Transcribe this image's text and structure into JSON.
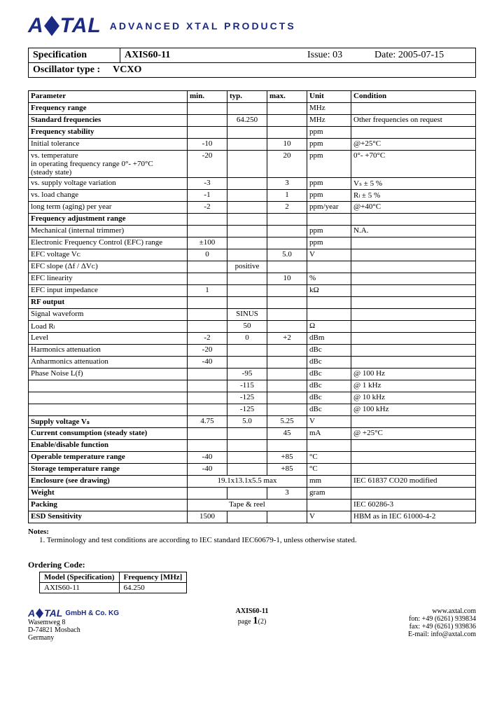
{
  "brand": {
    "name_a": "A",
    "name_b": "TAL",
    "tagline": "ADVANCED  XTAL  PRODUCTS"
  },
  "hdr": {
    "spec": "Specification",
    "model": "AXIS60-11",
    "issue_l": "Issue:",
    "issue_v": "03",
    "date_l": "Date:",
    "date_v": "2005-07-15",
    "osc_l": "Oscillator type :",
    "osc_v": "VCXO"
  },
  "cols": {
    "param": "Parameter",
    "min": "min.",
    "typ": "typ.",
    "max": "max.",
    "unit": "Unit",
    "cond": "Condition"
  },
  "rows": [
    {
      "p": "Frequency range",
      "b": 1,
      "u": "MHz"
    },
    {
      "p": "Standard frequencies",
      "b": 1,
      "typ": "64.250",
      "u": "MHz",
      "c": "Other frequencies on request"
    },
    {
      "p": "Frequency stability",
      "b": 1,
      "u": "ppm"
    },
    {
      "p": "Initial tolerance",
      "i": 1,
      "min": "-10",
      "max": "10",
      "u": "ppm",
      "c": "@+25°C"
    },
    {
      "p": "vs. temperature\nin operating frequency range 0°- +70°C\n(steady  state)",
      "i": 1,
      "min": "-20",
      "max": "20",
      "u": "ppm",
      "c": "0°- +70°C"
    },
    {
      "p": "vs. supply voltage variation",
      "i": 1,
      "min": "-3",
      "max": "3",
      "u": "ppm",
      "c": "Vₛ ± 5 %"
    },
    {
      "p": "vs. load change",
      "i": 1,
      "min": "-1",
      "max": "1",
      "u": "ppm",
      "c": "Rₗ ± 5 %"
    },
    {
      "p": "long term (aging)  per  year",
      "i": 2,
      "min": "-2",
      "max": "2",
      "u": "ppm/year",
      "c": "@+40°C"
    },
    {
      "p": "Frequency adjustment range",
      "b": 1
    },
    {
      "p": "Mechanical (internal trimmer)",
      "i": 1,
      "u": "ppm",
      "c": "N.A."
    },
    {
      "p": "Electronic Frequency Control (EFC) range",
      "i": 1,
      "min": "±100",
      "u": "ppm"
    },
    {
      "p": "EFC voltage  Vᴄ",
      "i": 2,
      "min": "0",
      "max": "5.0",
      "u": "V"
    },
    {
      "p": "EFC slope (Δf / ΔVᴄ)",
      "i": 2,
      "typ": "positive"
    },
    {
      "p": "EFC linearity",
      "i": 2,
      "max": "10",
      "u": "%"
    },
    {
      "p": "EFC input impedance",
      "i": 2,
      "min": "1",
      "u": "kΩ"
    },
    {
      "p": "RF output",
      "b": 1
    },
    {
      "p": "Signal waveform",
      "i": 1,
      "typ": "SINUS"
    },
    {
      "p": "Load Rₗ",
      "i": 1,
      "typ": "50",
      "u": "Ω"
    },
    {
      "p": "Level",
      "i": 1,
      "min": "-2",
      "typ": "0",
      "max": "+2",
      "u": "dBm"
    },
    {
      "p": "Harmonics attenuation",
      "i": 1,
      "min": "-20",
      "u": "dBc"
    },
    {
      "p": "Anharmonics attenuation",
      "i": 1,
      "min": "-40",
      "u": "dBc"
    },
    {
      "p": "Phase Noise L(f)",
      "i": 1,
      "typ": "-95",
      "u": "dBc",
      "c": "@ 100 Hz"
    },
    {
      "p": "",
      "typ": "-115",
      "u": "dBc",
      "c": "@ 1 kHz"
    },
    {
      "p": "",
      "typ": "-125",
      "u": "dBc",
      "c": "@ 10 kHz"
    },
    {
      "p": "",
      "typ": "-125",
      "u": "dBc",
      "c": "@ 100 kHz"
    },
    {
      "p": "Supply voltage Vₛ",
      "b": 1,
      "min": "4.75",
      "typ": "5.0",
      "max": "5.25",
      "u": "V"
    },
    {
      "p": "Current consumption (steady state)",
      "b": 1,
      "max": "45",
      "u": "mA",
      "c": "@ +25°C"
    },
    {
      "p": "Enable/disable function",
      "b": 1
    },
    {
      "p": "Operable temperature range",
      "b": 1,
      "min": "-40",
      "max": "+85",
      "u": "°C"
    },
    {
      "p": "Storage temperature range",
      "b": 1,
      "min": "-40",
      "max": "+85",
      "u": "°C"
    },
    {
      "p": "Enclosure (see drawing)",
      "b": 1,
      "typ": "19.1x13.1x5.5 max",
      "u": "mm",
      "c": "IEC 61837 CO20 modified",
      "span": 3
    },
    {
      "p": "Weight",
      "b": 1,
      "max": "3",
      "u": "gram"
    },
    {
      "p": "Packing",
      "b": 1,
      "typ": "Tape & reel",
      "span": 3,
      "c": "IEC 60286-3"
    },
    {
      "p": "ESD Sensitivity",
      "b": 1,
      "min": "1500",
      "u": "V",
      "c": "HBM as in IEC 61000-4-2"
    }
  ],
  "notes": {
    "title": "Notes:",
    "body": "1.   Terminology and test conditions are according to IEC standard IEC60679-1, unless otherwise stated."
  },
  "order": {
    "title": "Ordering Code:",
    "h1": "Model (Specification)",
    "h2": "Frequency [MHz]",
    "r1c1": "AXIS60-11",
    "r1c2": "64.250"
  },
  "footer": {
    "company": "GmbH & Co. KG",
    "addr1": "Wasemweg 8",
    "addr2": "D-74821 Mosbach",
    "addr3": "Germany",
    "model": "AXIS60-11",
    "page_l": "page",
    "page_n": "1",
    "page_t": "(2)",
    "web": "www.axtal.com",
    "fon": "fon: +49 (6261) 939834",
    "fax": "fax:  +49 (6261) 939836",
    "email": "E-mail: info@axtal.com"
  }
}
